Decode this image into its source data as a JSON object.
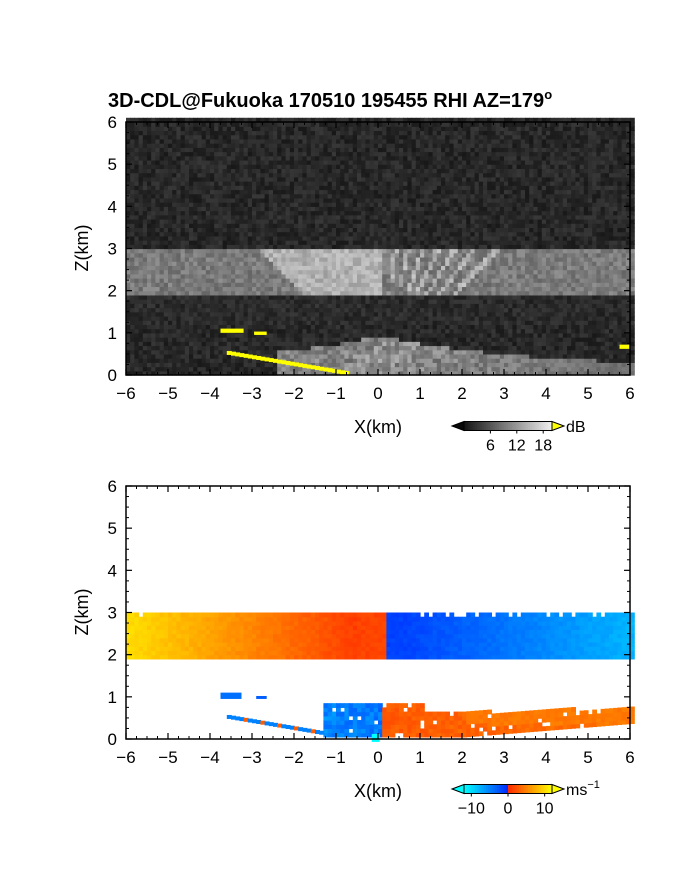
{
  "title": "3D-CDL@Fukuoka 170510 195455 RHI AZ=179",
  "title_sup": "o",
  "chart_data": [
    {
      "type": "heatmap",
      "name": "backscatter",
      "xlabel": "X(km)",
      "ylabel": "Z(km)",
      "xlim": [
        -6,
        6
      ],
      "ylim": [
        0,
        6
      ],
      "x_ticks": [
        "-6",
        "-5",
        "-4",
        "-3",
        "-2",
        "-1",
        "0",
        "1",
        "2",
        "3",
        "4",
        "5",
        "6"
      ],
      "y_ticks": [
        "0",
        "1",
        "2",
        "3",
        "4",
        "5",
        "6"
      ],
      "colorbar": {
        "unit": "dB",
        "ticks": [
          "6",
          "12",
          "18"
        ],
        "tick_values": [
          6,
          12,
          18
        ],
        "range": [
          0,
          20
        ]
      },
      "layers": [
        {
          "z_range": [
            1.9,
            3.0
          ],
          "level": "bright"
        },
        {
          "z_range": [
            0.0,
            0.9
          ],
          "level": "bright"
        },
        {
          "z_range": [
            3.0,
            6.0
          ],
          "level": "dark"
        }
      ]
    },
    {
      "type": "heatmap",
      "name": "doppler-velocity",
      "xlabel": "X(km)",
      "ylabel": "Z(km)",
      "xlim": [
        -6,
        6
      ],
      "ylim": [
        0,
        6
      ],
      "x_ticks": [
        "-6",
        "-5",
        "-4",
        "-3",
        "-2",
        "-1",
        "0",
        "1",
        "2",
        "3",
        "4",
        "5",
        "6"
      ],
      "y_ticks": [
        "0",
        "1",
        "2",
        "3",
        "4",
        "5",
        "6"
      ],
      "colorbar": {
        "unit": "ms",
        "unit_sup": "−1",
        "ticks": [
          "−10",
          "0",
          "10"
        ],
        "tick_values": [
          -10,
          0,
          10
        ],
        "range": [
          -12,
          12
        ]
      },
      "layers": [
        {
          "z_range": [
            1.8,
            3.0
          ],
          "x_range": [
            -6,
            6
          ],
          "velocity_left": 9,
          "velocity_right": -7
        },
        {
          "z_range": [
            0.0,
            0.8
          ],
          "x_range": [
            -4,
            6
          ],
          "velocity_left": -5,
          "velocity_right": 5
        }
      ]
    }
  ],
  "colors": {
    "yellow_mask": "#ffff00",
    "positive_max": "#ffff00",
    "zero_positive": "#ff2a00",
    "zero_negative": "#0000ff",
    "negative_max": "#00ffff"
  }
}
